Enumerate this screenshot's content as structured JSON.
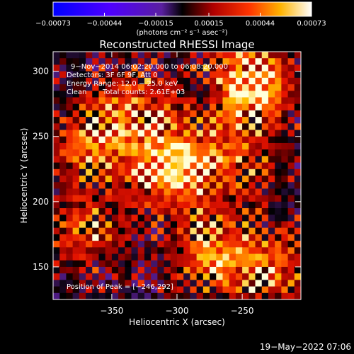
{
  "chart_data": {
    "type": "heatmap",
    "title": "Reconstructed RHESSI Image",
    "xlabel": "Heliocentric X (arcsec)",
    "ylabel": "Heliocentric Y (arcsec)",
    "xlim": [
      -395,
      -205
    ],
    "ylim": [
      125,
      315
    ],
    "x_ticks": [
      -350,
      -300,
      -250
    ],
    "x_tick_labels": [
      "−350",
      "−300",
      "−250"
    ],
    "y_ticks": [
      150,
      200,
      250,
      300
    ],
    "y_tick_labels": [
      "150",
      "200",
      "250",
      "300"
    ],
    "colorbar": {
      "range": [
        -0.00073,
        0.00073
      ],
      "ticks": [
        -0.00073,
        -0.00044,
        -0.00015,
        0.00015,
        0.00044,
        0.00073
      ],
      "tick_labels": [
        "−0.00073",
        "−0.00044",
        "−0.00015",
        "0.00015",
        "0.00044",
        "0.00073"
      ],
      "unit_label": "(photons cm⁻² s⁻¹ asec⁻²)"
    },
    "sources": [
      {
        "x": -300,
        "y": 225,
        "strength": 1.0
      },
      {
        "x": -244,
        "y": 292,
        "strength": 0.95
      },
      {
        "x": -270,
        "y": 160,
        "strength": 0.7
      },
      {
        "x": -225,
        "y": 150,
        "strength": 0.55
      },
      {
        "x": -365,
        "y": 245,
        "strength": 0.6
      },
      {
        "x": -330,
        "y": 270,
        "strength": 0.55
      },
      {
        "x": -250,
        "y": 235,
        "strength": 0.45
      },
      {
        "x": -370,
        "y": 180,
        "strength": 0.5
      }
    ],
    "annotations": {
      "time": "9−Nov−2014 06:02:20.000 to 06:08:20.000",
      "detectors": "Detectors: 3F 6F 9F, Att 0",
      "energy": "Energy Range: 12.0 − 25.0 keV",
      "clean": "Clean",
      "total_counts": "Total counts: 2.61E+03",
      "peak": "Position of Peak = [−246,292]"
    }
  },
  "footer": {
    "date": "19−May−2022 07:06"
  }
}
